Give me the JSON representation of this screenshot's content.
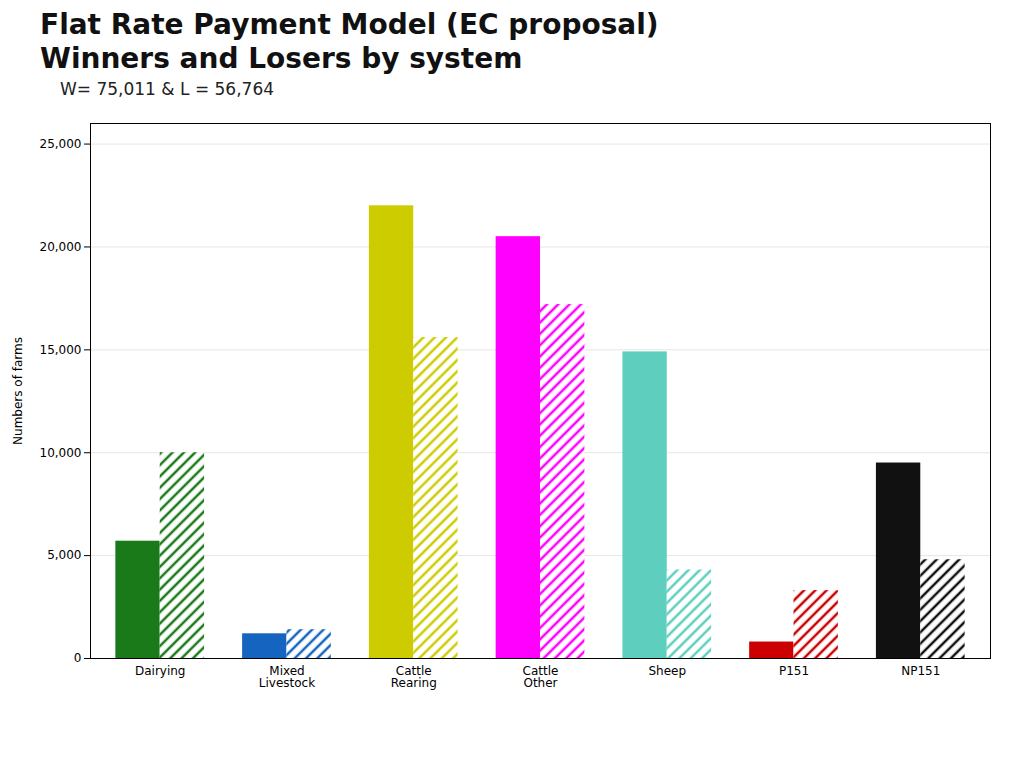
{
  "chart_data": {
    "type": "bar",
    "title": "Flat Rate Payment Model (EC proposal)\nWinners and Losers by system",
    "subtitle": "W= 75,011 & L = 56,764",
    "categories": [
      "Dairying",
      "Mixed\nLivestock",
      "Cattle\nRearing",
      "Cattle\nOther",
      "Sheep",
      "P151",
      "NP151"
    ],
    "series": [
      {
        "values": [
          5700,
          1200,
          22000,
          20500,
          14900,
          800,
          9500
        ],
        "colors": [
          "#1a7a1a",
          "#1565c0",
          "#cccc00",
          "#ff00ff",
          "#5ecfbe",
          "#cc0000",
          "#111111"
        ]
      },
      {
        "values": [
          10000,
          1400,
          15600,
          17200,
          4300,
          3300,
          4800
        ],
        "colors": [
          "#1a7a1a",
          "#1565c0",
          "#cccc00",
          "#ff00ff",
          "#5ecfbe",
          "#cc0000",
          "#111111"
        ]
      }
    ],
    "ylabel": "Numbers of farms",
    "ylim": [
      0,
      26000
    ],
    "yticks": [
      0,
      {
        "value": 5000,
        "label": "5,000"
      },
      {
        "value": 10000,
        "label": "10,000"
      },
      {
        "value": 15000,
        "label": "15,000"
      },
      {
        "value": 20000,
        "label": "20,000"
      },
      {
        "value": 25000,
        "label": "25,000"
      }
    ],
    "grid": true
  }
}
